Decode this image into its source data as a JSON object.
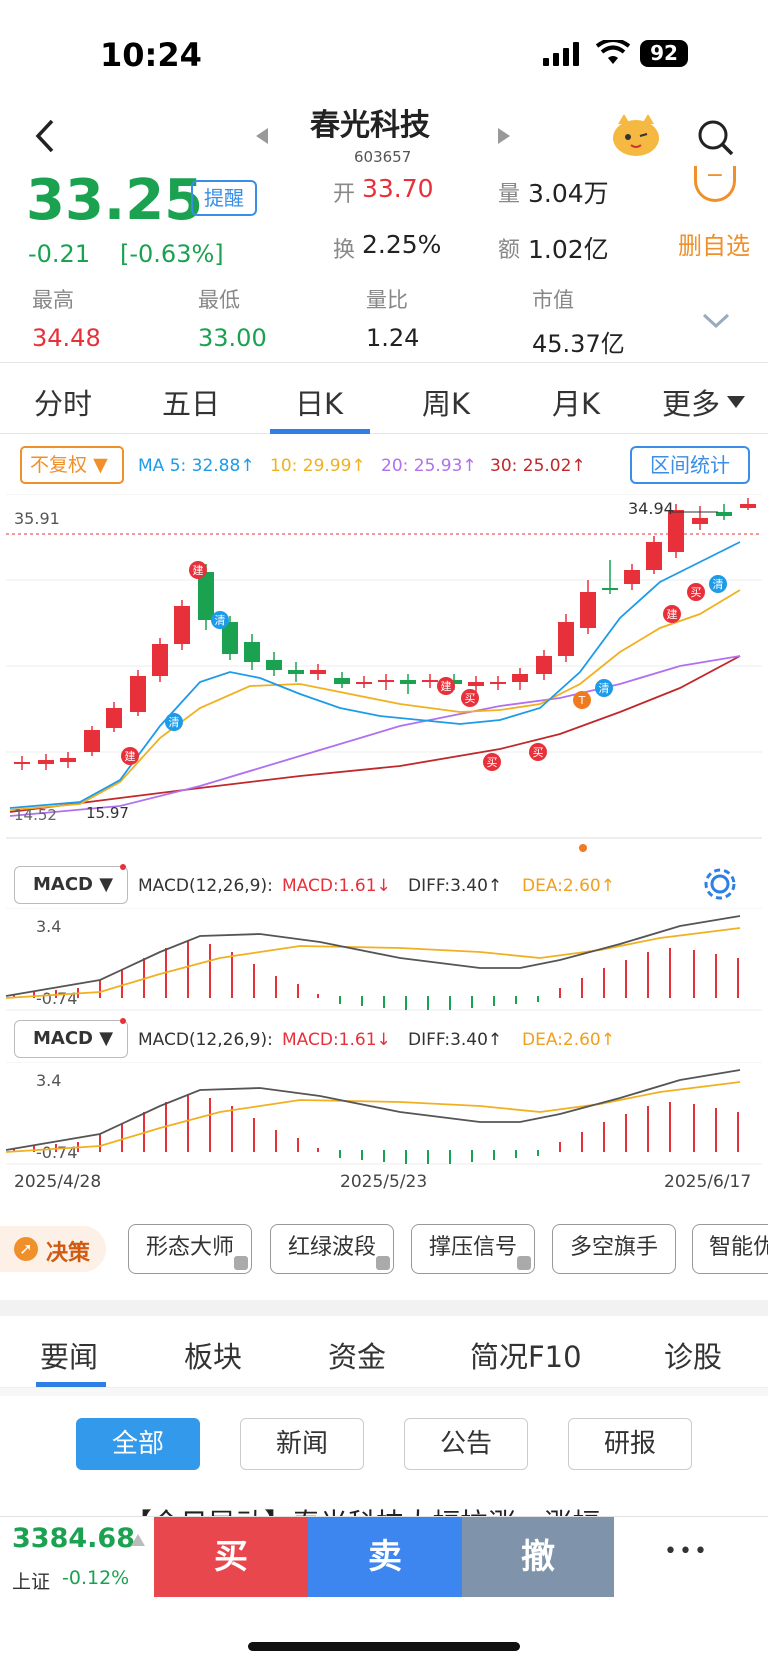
{
  "status": {
    "time": "10:24",
    "battery": "92"
  },
  "header": {
    "name": "春光科技",
    "code": "603657"
  },
  "quote": {
    "price": "33.25",
    "change": "-0.21",
    "change_pct": "[-0.63%]",
    "alert_label": "提醒",
    "open_label": "开",
    "open": "33.70",
    "turnover_label": "换",
    "turnover": "2.25%",
    "volume_label": "量",
    "volume": "3.04万",
    "amount_label": "额",
    "amount": "1.02亿",
    "remove_watch_label": "删自选",
    "remove_watch_icon": "−"
  },
  "stats": [
    {
      "label": "最高",
      "value": "34.48",
      "color": "#e8303a"
    },
    {
      "label": "最低",
      "value": "33.00",
      "color": "#1aa251"
    },
    {
      "label": "量比",
      "value": "1.24",
      "color": "#222222"
    },
    {
      "label": "市值",
      "value": "45.37亿",
      "color": "#222222"
    }
  ],
  "period_tabs": [
    "分时",
    "五日",
    "日K",
    "周K",
    "月K",
    "更多"
  ],
  "active_period": "日K",
  "ma_bar": {
    "adjust_label": "不复权",
    "ma5": "MA 5: 32.88↑",
    "ma10": "10: 29.99↑",
    "ma20": "20: 25.93↑",
    "ma30": "30: 25.02↑",
    "range_btn": "区间统计",
    "colors": {
      "ma5": "#1e9be8",
      "ma10": "#f0b020",
      "ma20": "#b070f0",
      "ma30": "#c0282a"
    }
  },
  "kline_labels": {
    "top_price": "35.91",
    "high_mark": "34.94",
    "low_left": "14.52",
    "low_mark": "15.97"
  },
  "macd_panels": [
    {
      "selector": "MACD",
      "params": "MACD(12,26,9):",
      "macd": "MACD:1.61↓",
      "diff": "DIFF:3.40↑",
      "dea": "DEA:2.60↑",
      "ymax": "3.4",
      "ymin": "-0.74"
    },
    {
      "selector": "MACD",
      "params": "MACD(12,26,9):",
      "macd": "MACD:1.61↓",
      "diff": "DIFF:3.40↑",
      "dea": "DEA:2.60↑",
      "ymax": "3.4",
      "ymin": "-0.74"
    }
  ],
  "dates": [
    "2025/4/28",
    "2025/5/23",
    "2025/6/17"
  ],
  "decision": {
    "label": "决策",
    "chips": [
      "形态大师",
      "红绿波段",
      "撑压信号",
      "多空旗手",
      "智能优"
    ]
  },
  "news_tabs": [
    "要闻",
    "板块",
    "资金",
    "简况F10",
    "诊股"
  ],
  "news_filters": [
    "全部",
    "新闻",
    "公告",
    "研报"
  ],
  "news_peek": "【今日异动】春光科技大幅拉涨，涨幅",
  "bottom": {
    "index_value": "3384.68",
    "index_name": "上证",
    "index_pct": "-0.12%",
    "buy": "买",
    "sell": "卖",
    "cancel": "撤",
    "more": "•••"
  },
  "markers": {
    "build": "建",
    "clear": "清",
    "buy": "买",
    "t": "T"
  }
}
